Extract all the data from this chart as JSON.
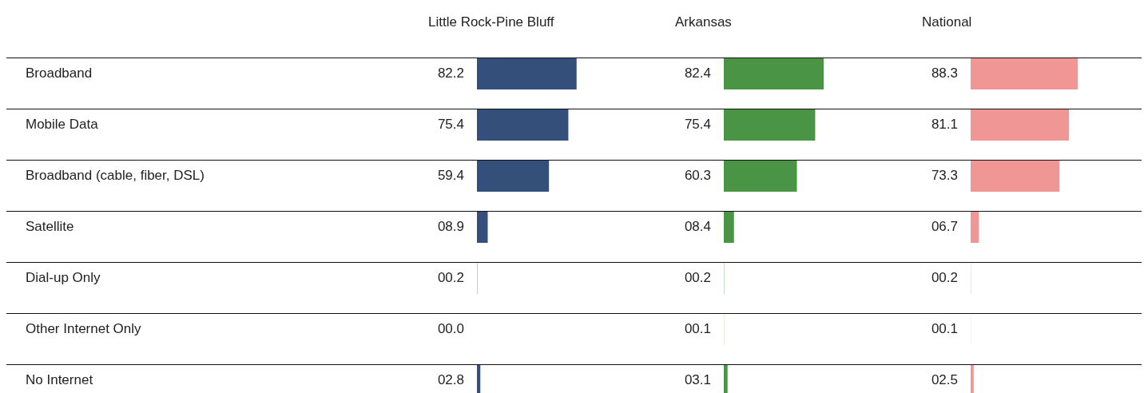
{
  "chart_data": [
    {
      "type": "bar",
      "orientation": "horizontal",
      "tick_labels": "y",
      "title": "Little Rock-Pine Bluff",
      "color": "#34507a",
      "categories": [
        "Broadband",
        "Mobile Data",
        "Broadband (cable, fiber, DSL)",
        "Satellite",
        "Dial-up Only",
        "Other Internet Only",
        "No Internet"
      ],
      "values": [
        82.2,
        75.4,
        59.4,
        8.9,
        0.2,
        0.0,
        2.8
      ],
      "value_labels": [
        "82.2",
        "75.4",
        "59.4",
        "08.9",
        "00.2",
        "00.0",
        "02.8"
      ]
    },
    {
      "type": "bar",
      "orientation": "horizontal",
      "tick_labels": false,
      "title": "Arkansas",
      "color": "#4a9446",
      "categories": [
        null,
        null,
        null,
        null,
        null,
        null,
        null
      ],
      "values": [
        82.4,
        75.4,
        60.3,
        8.4,
        0.2,
        0.1,
        3.1
      ],
      "value_labels": [
        "82.4",
        "75.4",
        "60.3",
        "08.4",
        "00.2",
        "00.1",
        "03.1"
      ]
    },
    {
      "type": "bar",
      "orientation": "horizontal",
      "tick_labels": false,
      "title": "National",
      "color": "#f09795",
      "categories": [
        null,
        null,
        null,
        null,
        null,
        null,
        null
      ],
      "values": [
        88.3,
        81.1,
        73.3,
        6.7,
        0.2,
        0.1,
        2.5
      ],
      "value_labels": [
        "88.3",
        "81.1",
        "73.3",
        "06.7",
        "00.2",
        "00.1",
        "02.5"
      ]
    }
  ]
}
